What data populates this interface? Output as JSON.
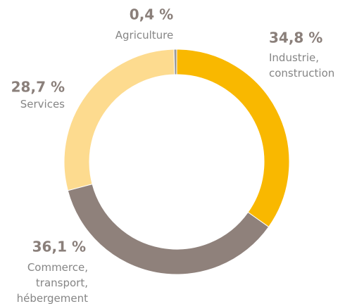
{
  "chart_data": {
    "type": "donut",
    "categories": [
      "Agriculture",
      "Industrie, construction",
      "Commerce, transport, hébergement",
      "Services"
    ],
    "values": [
      0.4,
      34.8,
      36.1,
      28.7
    ],
    "value_labels": [
      "0,4 %",
      "34,8 %",
      "36,1 %",
      "28,7 %"
    ],
    "colors": [
      "#9a9a9a",
      "#f9b800",
      "#8f817b",
      "#fddb8f"
    ]
  }
}
